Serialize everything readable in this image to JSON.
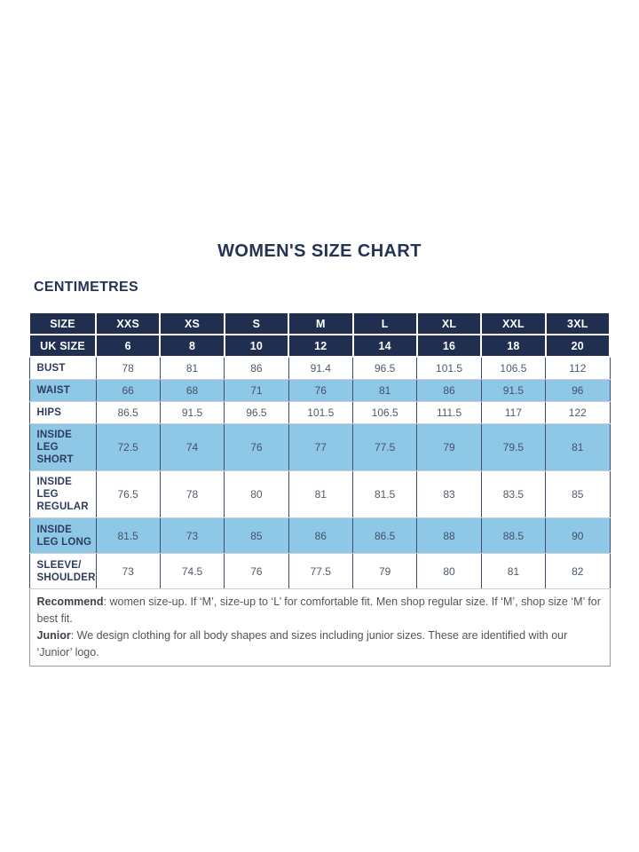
{
  "page": {
    "title": "WOMEN'S SIZE CHART",
    "unit_label": "CENTIMETRES"
  },
  "colors": {
    "header_navy": "#202e50",
    "row_blue": "#8ec8e6",
    "heading_navy": "#243454",
    "label_navy": "#2c3c5e",
    "value_gray": "#4e5a6b",
    "footer_border_gray": "#9b9b9b"
  },
  "table": {
    "header_rows": [
      {
        "label": "SIZE",
        "values": [
          "XXS",
          "XS",
          "S",
          "M",
          "L",
          "XL",
          "XXL",
          "3XL"
        ]
      },
      {
        "label": "UK SIZE",
        "values": [
          "6",
          "8",
          "10",
          "12",
          "14",
          "16",
          "18",
          "20"
        ]
      }
    ],
    "rows": [
      {
        "label": "BUST",
        "highlight": false,
        "values": [
          "78",
          "81",
          "86",
          "91.4",
          "96.5",
          "101.5",
          "106.5",
          "112"
        ]
      },
      {
        "label": "WAIST",
        "highlight": true,
        "values": [
          "66",
          "68",
          "71",
          "76",
          "81",
          "86",
          "91.5",
          "96"
        ]
      },
      {
        "label": "HIPS",
        "highlight": false,
        "values": [
          "86.5",
          "91.5",
          "96.5",
          "101.5",
          "106.5",
          "111.5",
          "117",
          "122"
        ]
      },
      {
        "label": "INSIDE LEG SHORT",
        "highlight": true,
        "values": [
          "72.5",
          "74",
          "76",
          "77",
          "77.5",
          "79",
          "79.5",
          "81"
        ]
      },
      {
        "label": "INSIDE LEG REGULAR",
        "highlight": false,
        "values": [
          "76.5",
          "78",
          "80",
          "81",
          "81.5",
          "83",
          "83.5",
          "85"
        ]
      },
      {
        "label": "INSIDE LEG LONG",
        "highlight": true,
        "values": [
          "81.5",
          "73",
          "85",
          "86",
          "86.5",
          "88",
          "88.5",
          "90"
        ]
      },
      {
        "label": "SLEEVE/ SHOULDER",
        "highlight": false,
        "values": [
          "73",
          "74.5",
          "76",
          "77.5",
          "79",
          "80",
          "81",
          "82"
        ]
      }
    ],
    "footer": [
      {
        "bold": "Recommend",
        "text": ": women size-up. If ‘M’, size-up to ‘L’ for comfortable fit. Men shop regular size. If ‘M’, shop size ‘M’ for best fit."
      },
      {
        "bold": "Junior",
        "text": ": We design clothing for all body shapes and sizes including junior sizes. These are identified with our ‘Junior’ logo."
      }
    ]
  }
}
